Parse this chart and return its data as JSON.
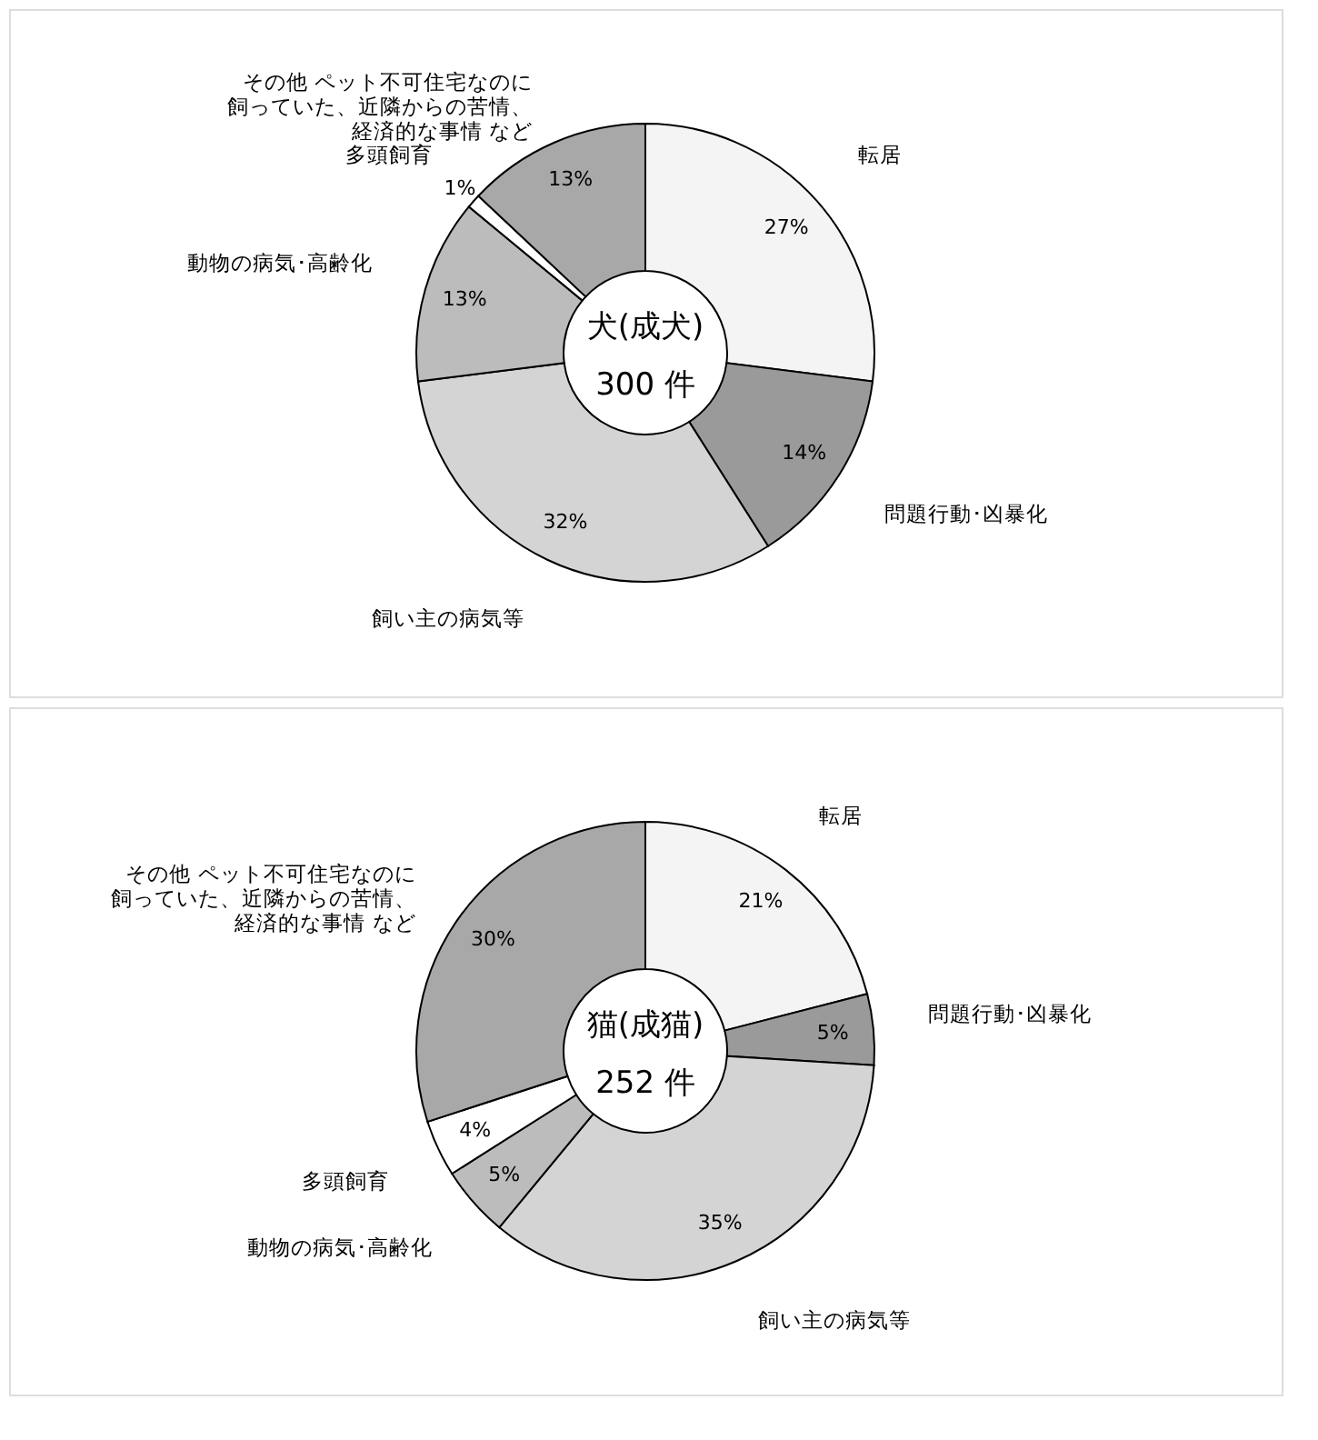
{
  "chart_data": [
    {
      "type": "donut",
      "title": "犬(成犬)",
      "subtitle": "300 件",
      "categories": [
        "転居",
        "問題行動･凶暴化",
        "飼い主の病気等",
        "動物の病気･高齢化",
        "多頭飼育",
        "その他 ペット不可住宅なのに飼っていた、近隣からの苦情、経済的な事情 など"
      ],
      "values": [
        27,
        14,
        32,
        13,
        1,
        13
      ],
      "value_labels": [
        "27%",
        "14%",
        "32%",
        "13%",
        "1%",
        "13%"
      ],
      "colors": [
        "#f4f4f4",
        "#9a9a9a",
        "#d4d4d4",
        "#bcbcbc",
        "#ffffff",
        "#a8a8a8"
      ]
    },
    {
      "type": "donut",
      "title": "猫(成猫)",
      "subtitle": "252 件",
      "categories": [
        "転居",
        "問題行動･凶暴化",
        "飼い主の病気等",
        "動物の病気･高齢化",
        "多頭飼育",
        "その他 ペット不可住宅なのに飼っていた、近隣からの苦情、経済的な事情 など"
      ],
      "values": [
        21,
        5,
        35,
        5,
        4,
        30
      ],
      "value_labels": [
        "21%",
        "5%",
        "35%",
        "5%",
        "4%",
        "30%"
      ],
      "colors": [
        "#f4f4f4",
        "#9a9a9a",
        "#d4d4d4",
        "#bcbcbc",
        "#ffffff",
        "#a8a8a8"
      ]
    }
  ]
}
